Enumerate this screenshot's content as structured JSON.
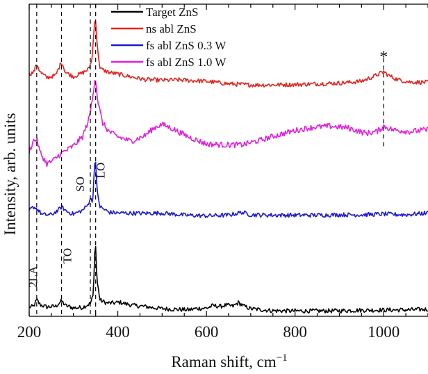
{
  "chart_data": {
    "type": "line",
    "xlabel": "Raman shift, cm",
    "xlabel_sup": "−1",
    "ylabel": "Intensity, arb. units",
    "xlim": [
      200,
      1100
    ],
    "xticks": [
      200,
      400,
      600,
      800,
      1000
    ],
    "y_ticks_shown": false,
    "legend_position": "top-left",
    "grid": false,
    "series": [
      {
        "name": "Target ZnS",
        "color": "#000000",
        "baseline": 0.62,
        "points": [
          [
            200,
            0.55
          ],
          [
            210,
            0.75
          ],
          [
            217,
            2.6
          ],
          [
            225,
            1.2
          ],
          [
            240,
            0.6
          ],
          [
            260,
            0.8
          ],
          [
            273,
            2.3
          ],
          [
            282,
            1.0
          ],
          [
            300,
            0.35
          ],
          [
            320,
            0.45
          ],
          [
            338,
            1.6
          ],
          [
            345,
            4.0
          ],
          [
            349,
            20.5
          ],
          [
            353,
            8.0
          ],
          [
            360,
            2.5
          ],
          [
            375,
            1.7
          ],
          [
            390,
            1.7
          ],
          [
            405,
            1.9
          ],
          [
            420,
            1.4
          ],
          [
            440,
            0.95
          ],
          [
            460,
            0.75
          ],
          [
            480,
            0.4
          ],
          [
            500,
            0.15
          ],
          [
            520,
            0.0
          ],
          [
            540,
            -0.1
          ],
          [
            560,
            -0.2
          ],
          [
            580,
            0.2
          ],
          [
            600,
            0.25
          ],
          [
            615,
            1.0
          ],
          [
            630,
            0.75
          ],
          [
            645,
            1.1
          ],
          [
            660,
            0.8
          ],
          [
            672,
            1.8
          ],
          [
            685,
            0.8
          ],
          [
            700,
            0.1
          ],
          [
            750,
            -0.45
          ],
          [
            800,
            -0.5
          ],
          [
            850,
            -0.5
          ],
          [
            900,
            -0.45
          ],
          [
            950,
            -0.3
          ],
          [
            1000,
            -0.25
          ],
          [
            1050,
            -0.2
          ],
          [
            1100,
            -0.05
          ]
        ]
      },
      {
        "name": "ns abl ZnS",
        "color": "#e8201b",
        "baseline": 65.5,
        "points": [
          [
            200,
            65.5
          ],
          [
            210,
            66.0
          ],
          [
            217,
            68.5
          ],
          [
            225,
            66.0
          ],
          [
            240,
            64.5
          ],
          [
            260,
            65.2
          ],
          [
            273,
            69.0
          ],
          [
            282,
            66.0
          ],
          [
            300,
            64.8
          ],
          [
            320,
            65.8
          ],
          [
            335,
            67.0
          ],
          [
            342,
            70.0
          ],
          [
            349,
            82.5
          ],
          [
            353,
            74.0
          ],
          [
            360,
            67.0
          ],
          [
            380,
            66.0
          ],
          [
            400,
            65.5
          ],
          [
            420,
            65.0
          ],
          [
            440,
            64.5
          ],
          [
            460,
            64.0
          ],
          [
            500,
            63.8
          ],
          [
            540,
            63.9
          ],
          [
            600,
            63.5
          ],
          [
            650,
            62.8
          ],
          [
            700,
            62.5
          ],
          [
            750,
            62.5
          ],
          [
            800,
            62.6
          ],
          [
            850,
            62.8
          ],
          [
            900,
            63.0
          ],
          [
            950,
            63.5
          ],
          [
            980,
            65.0
          ],
          [
            1000,
            66.2
          ],
          [
            1010,
            65.2
          ],
          [
            1030,
            64.0
          ],
          [
            1060,
            63.3
          ],
          [
            1100,
            63.2
          ]
        ]
      },
      {
        "name": "fs abl ZnS 0.3 W",
        "color": "#1a17d6",
        "baseline": 27.5,
        "points": [
          [
            200,
            27.5
          ],
          [
            210,
            28.5
          ],
          [
            217,
            28.0
          ],
          [
            230,
            26.3
          ],
          [
            250,
            26.3
          ],
          [
            265,
            27.5
          ],
          [
            273,
            28.5
          ],
          [
            285,
            27.2
          ],
          [
            300,
            26.5
          ],
          [
            320,
            27.5
          ],
          [
            332,
            29.0
          ],
          [
            338,
            31.0
          ],
          [
            343,
            29.5
          ],
          [
            349,
            43.5
          ],
          [
            353,
            33.0
          ],
          [
            360,
            28.5
          ],
          [
            380,
            27.0
          ],
          [
            400,
            26.8
          ],
          [
            450,
            26.7
          ],
          [
            500,
            26.8
          ],
          [
            550,
            26.2
          ],
          [
            600,
            26.0
          ],
          [
            650,
            26.2
          ],
          [
            680,
            27.0
          ],
          [
            700,
            26.3
          ],
          [
            750,
            26.2
          ],
          [
            800,
            26.2
          ],
          [
            850,
            26.2
          ],
          [
            900,
            26.3
          ],
          [
            950,
            26.3
          ],
          [
            1000,
            26.5
          ],
          [
            1050,
            26.3
          ],
          [
            1100,
            26.8
          ]
        ]
      },
      {
        "name": "fs abl ZnS 1.0 W",
        "color": "#e21fe0",
        "baseline": 45.0,
        "points": [
          [
            200,
            44.0
          ],
          [
            210,
            47.0
          ],
          [
            217,
            47.3
          ],
          [
            225,
            43.5
          ],
          [
            240,
            40.5
          ],
          [
            255,
            41.5
          ],
          [
            273,
            43.5
          ],
          [
            285,
            44.3
          ],
          [
            300,
            45.5
          ],
          [
            320,
            48.0
          ],
          [
            335,
            53.0
          ],
          [
            342,
            58.0
          ],
          [
            349,
            65.0
          ],
          [
            355,
            58.0
          ],
          [
            365,
            52.0
          ],
          [
            380,
            49.5
          ],
          [
            400,
            48.0
          ],
          [
            430,
            46.8
          ],
          [
            460,
            48.3
          ],
          [
            485,
            50.8
          ],
          [
            500,
            51.5
          ],
          [
            520,
            50.5
          ],
          [
            560,
            48.0
          ],
          [
            600,
            46.0
          ],
          [
            640,
            45.8
          ],
          [
            680,
            45.8
          ],
          [
            720,
            47.0
          ],
          [
            760,
            48.5
          ],
          [
            800,
            49.8
          ],
          [
            840,
            50.7
          ],
          [
            880,
            51.0
          ],
          [
            920,
            50.5
          ],
          [
            960,
            49.0
          ],
          [
            985,
            49.5
          ],
          [
            1000,
            51.0
          ],
          [
            1020,
            50.0
          ],
          [
            1060,
            49.5
          ],
          [
            1100,
            50.0
          ]
        ]
      }
    ],
    "annotations": [
      {
        "label": "2LA",
        "x": 217
      },
      {
        "label": "TO",
        "x": 273
      },
      {
        "label": "SO",
        "x": 338
      },
      {
        "label": "LO",
        "x": 350
      },
      {
        "label": "*",
        "x": 1000
      }
    ]
  }
}
